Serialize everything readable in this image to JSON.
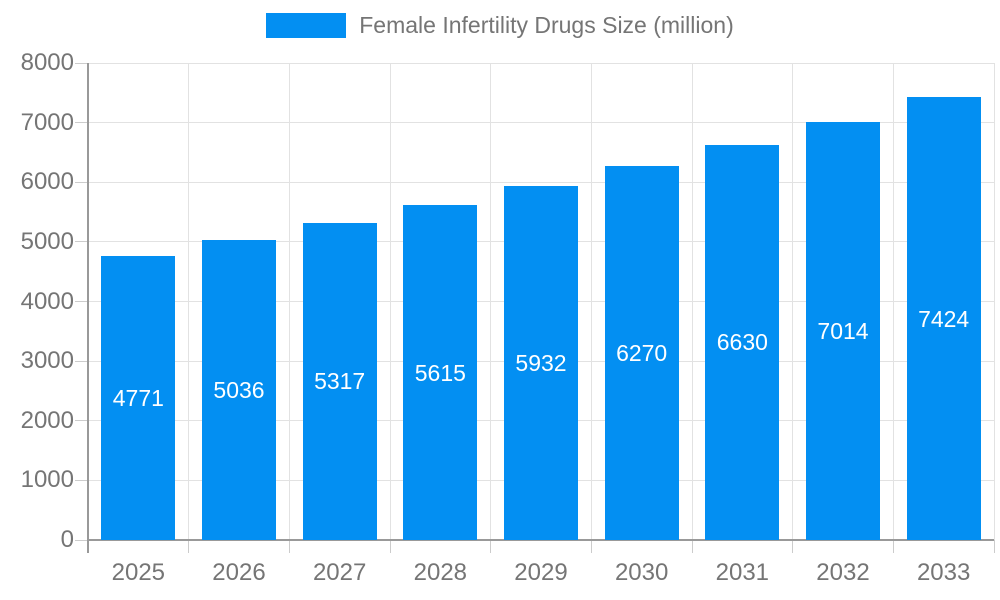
{
  "legend": {
    "label": "Female Infertility Drugs Size (million)",
    "swatch_color": "#038ff2"
  },
  "chart_data": {
    "type": "bar",
    "title": "Female Infertility Drugs Size (million)",
    "categories": [
      "2025",
      "2026",
      "2027",
      "2028",
      "2029",
      "2030",
      "2031",
      "2032",
      "2033"
    ],
    "series": [
      {
        "name": "Female Infertility Drugs Size (million)",
        "values": [
          4771,
          5036,
          5317,
          5615,
          5932,
          6270,
          6630,
          7014,
          7424
        ]
      }
    ],
    "xlabel": "",
    "ylabel": "",
    "ylim": [
      0,
      8000
    ],
    "ytick_step": 1000,
    "y_tick_labels": [
      "0",
      "1000",
      "2000",
      "3000",
      "4000",
      "5000",
      "6000",
      "7000",
      "8000"
    ],
    "grid": true,
    "legend_position": "top",
    "bar_labels_inside": true,
    "colors": {
      "bar": "#038ff2",
      "bar_label": "#ffffff",
      "axis_text": "#757575",
      "gridline": "#e2e2e2",
      "axis_line": "#999999",
      "tick": "#cccccc"
    }
  }
}
